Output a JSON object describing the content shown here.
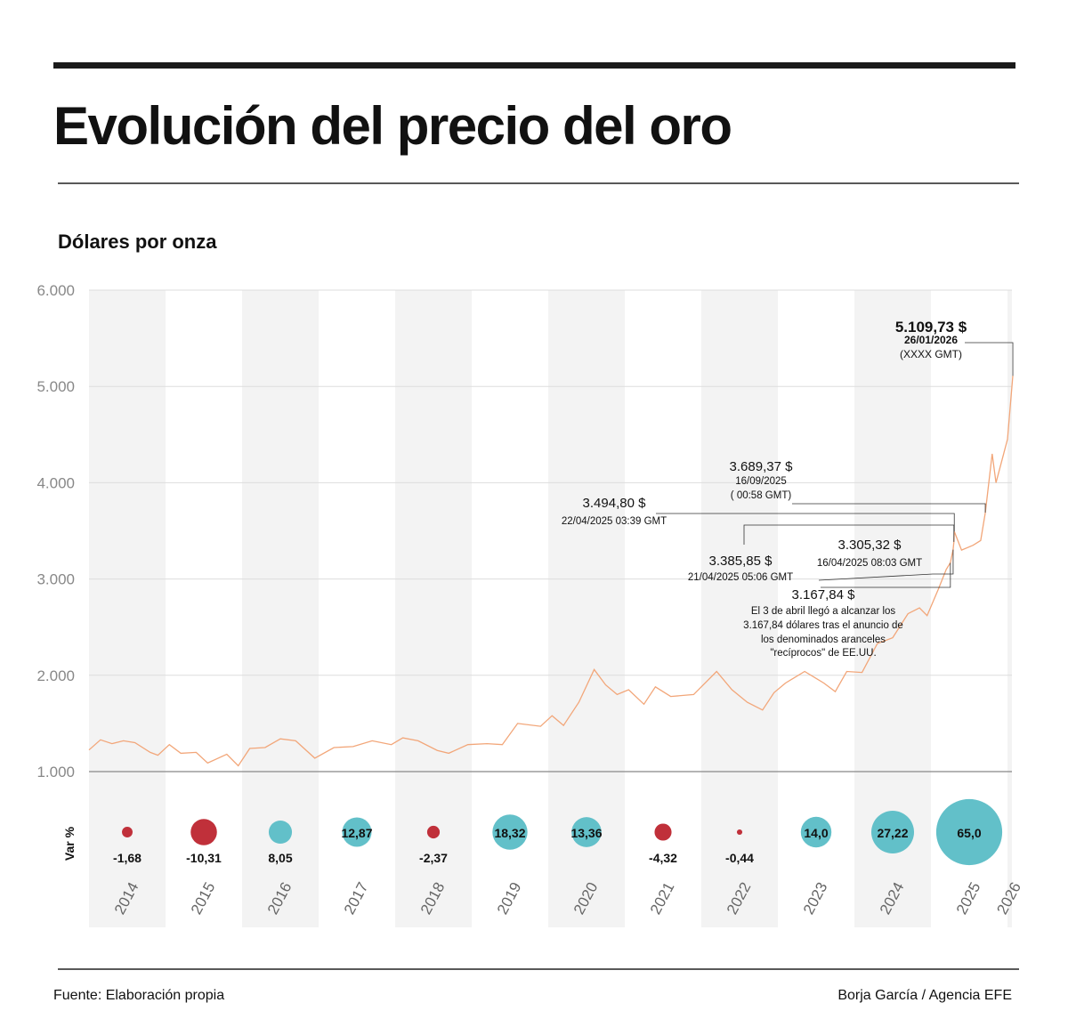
{
  "header": {
    "title": "Evolución del precio del oro"
  },
  "chart_data": [
    {
      "type": "line",
      "subtitle": "Dólares por onza",
      "color": "#f2a679",
      "x": [
        2014.0,
        2014.15,
        2014.3,
        2014.45,
        2014.6,
        2014.8,
        2014.9,
        2015.05,
        2015.2,
        2015.4,
        2015.55,
        2015.8,
        2015.95,
        2016.1,
        2016.3,
        2016.5,
        2016.7,
        2016.95,
        2017.2,
        2017.45,
        2017.7,
        2017.95,
        2018.1,
        2018.3,
        2018.55,
        2018.7,
        2018.95,
        2019.2,
        2019.4,
        2019.6,
        2019.9,
        2020.05,
        2020.2,
        2020.4,
        2020.6,
        2020.75,
        2020.9,
        2021.05,
        2021.25,
        2021.4,
        2021.6,
        2021.9,
        2022.2,
        2022.4,
        2022.6,
        2022.8,
        2022.95,
        2023.1,
        2023.35,
        2023.6,
        2023.75,
        2023.9,
        2024.1,
        2024.3,
        2024.5,
        2024.7,
        2024.85,
        2024.95,
        2025.1,
        2025.2,
        2025.254,
        2025.29,
        2025.3,
        2025.305,
        2025.4,
        2025.55,
        2025.65,
        2025.71,
        2025.8,
        2025.85,
        2025.95,
        2026.0,
        2026.07
      ],
      "values": [
        1225,
        1330,
        1290,
        1320,
        1300,
        1200,
        1170,
        1280,
        1190,
        1200,
        1090,
        1180,
        1060,
        1240,
        1250,
        1340,
        1320,
        1140,
        1250,
        1260,
        1320,
        1280,
        1350,
        1320,
        1220,
        1190,
        1280,
        1290,
        1280,
        1500,
        1470,
        1580,
        1480,
        1720,
        2060,
        1900,
        1800,
        1850,
        1700,
        1880,
        1780,
        1800,
        2040,
        1850,
        1720,
        1640,
        1820,
        1920,
        2040,
        1920,
        1830,
        2040,
        2030,
        2330,
        2390,
        2640,
        2700,
        2620,
        2900,
        3100,
        3167.84,
        3305.32,
        3385.85,
        3494.8,
        3300,
        3350,
        3400,
        3689.37,
        4300,
        4000,
        4300,
        4450,
        5109.73
      ],
      "xlim": [
        2014,
        2026.07
      ],
      "ylim": [
        1000,
        6000
      ],
      "yticks": [
        {
          "value": 1000,
          "label": "1.000"
        },
        {
          "value": 2000,
          "label": "2.000"
        },
        {
          "value": 3000,
          "label": "3.000"
        },
        {
          "value": 4000,
          "label": "4.000"
        },
        {
          "value": 5000,
          "label": "5.000"
        },
        {
          "value": 6000,
          "label": "6.000"
        }
      ],
      "grid": true,
      "annotations": [
        {
          "x": 2026.07,
          "value": 5109.73,
          "label": "5.109,73 $",
          "lines": [
            "26/01/2026",
            "(XXXX GMT)"
          ]
        },
        {
          "x": 2025.71,
          "value": 3689.37,
          "label": "3.689,37 $",
          "lines": [
            "16/09/2025",
            "( 00:58 GMT)"
          ]
        },
        {
          "x": 2025.305,
          "value": 3494.8,
          "label": "3.494,80 $",
          "lines": [
            "22/04/2025 03:39 GMT"
          ]
        },
        {
          "x": 2025.3,
          "value": 3385.85,
          "label": "3.385,85 $",
          "lines": [
            "21/04/2025 05:06 GMT"
          ]
        },
        {
          "x": 2025.29,
          "value": 3305.32,
          "label": "3.305,32 $",
          "lines": [
            "16/04/2025 08:03 GMT"
          ]
        },
        {
          "x": 2025.254,
          "value": 3167.84,
          "label": "3.167,84 $",
          "lines": [
            "El 3 de abril llegó a alcanzar los",
            "3.167,84 dólares tras el anuncio de",
            "los denominados aranceles",
            "\"recíprocos\" de EE.UU."
          ]
        }
      ]
    },
    {
      "type": "bubble",
      "y_label": "Var %",
      "color_positive": "#62c0c9",
      "color_negative": "#c0303a",
      "categories": [
        "2014",
        "2015",
        "2016",
        "2017",
        "2018",
        "2019",
        "2020",
        "2021",
        "2022",
        "2023",
        "2024",
        "2025",
        "2026"
      ],
      "values": [
        -1.68,
        -10.31,
        8.05,
        12.87,
        -2.37,
        18.32,
        13.36,
        -4.32,
        -0.44,
        14.0,
        27.22,
        65.0,
        null
      ],
      "value_labels": [
        "-1,68",
        "-10,31",
        "8,05",
        "12,87",
        "-2,37",
        "18,32",
        "13,36",
        "-4,32",
        "-0,44",
        "14,0",
        "27,22",
        "65,0",
        null
      ]
    }
  ],
  "footer": {
    "source": "Fuente: Elaboración propia",
    "credit": "Borja García / Agencia EFE"
  }
}
